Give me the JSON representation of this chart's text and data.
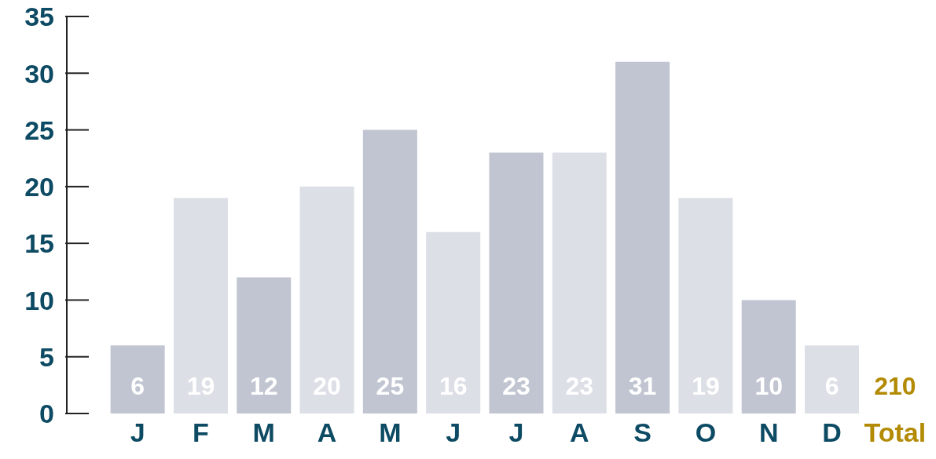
{
  "chart_data": {
    "type": "bar",
    "categories": [
      "J",
      "F",
      "M",
      "A",
      "M",
      "J",
      "J",
      "A",
      "S",
      "O",
      "N",
      "D",
      "Total"
    ],
    "values": [
      6,
      19,
      12,
      20,
      25,
      16,
      23,
      23,
      31,
      19,
      10,
      6,
      null
    ],
    "value_labels": [
      "6",
      "19",
      "12",
      "20",
      "25",
      "16",
      "23",
      "23",
      "31",
      "19",
      "10",
      "6",
      "210"
    ],
    "colors": [
      "#c1c5d1",
      "#dcdfe6",
      "#c1c5d1",
      "#dcdfe6",
      "#c1c5d1",
      "#dcdfe6",
      "#c1c5d1",
      "#dcdfe6",
      "#c1c5d1",
      "#dcdfe6",
      "#c1c5d1",
      "#dcdfe6",
      "#b38a03"
    ],
    "ylim": [
      0,
      35
    ],
    "yticks": [
      0,
      5,
      10,
      15,
      20,
      25,
      30,
      35
    ]
  }
}
